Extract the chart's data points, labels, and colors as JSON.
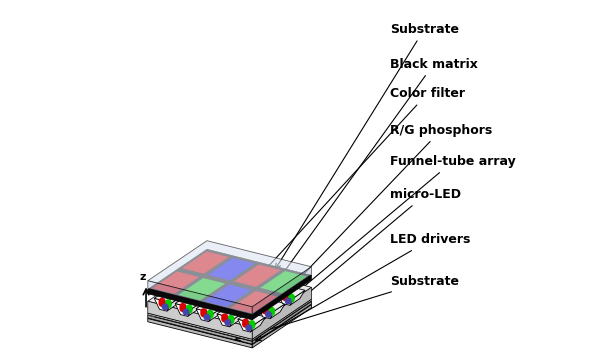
{
  "labels": {
    "substrate_top": "Substrate",
    "black_matrix": "Black matrix",
    "color_filter": "Color filter",
    "rg_phosphors": "R/G phosphors",
    "funnel_tube": "Funnel-tube array",
    "micro_led": "micro-LED",
    "led_drivers": "LED drivers",
    "substrate_bot": "Substrate"
  },
  "colors": {
    "background": "#ffffff",
    "red": "#dd0000",
    "green": "#00cc00",
    "blue": "#0000ee",
    "blue_led": "#4444aa"
  },
  "label_fontsize": 9,
  "cf_grid": [
    [
      "red",
      "green",
      "blue",
      "red"
    ],
    [
      "red",
      "blue",
      "red",
      "green"
    ]
  ],
  "n_funnel_cols": 5,
  "n_funnel_rows": 3,
  "n_cf_cols": 4,
  "n_cf_rows": 2
}
